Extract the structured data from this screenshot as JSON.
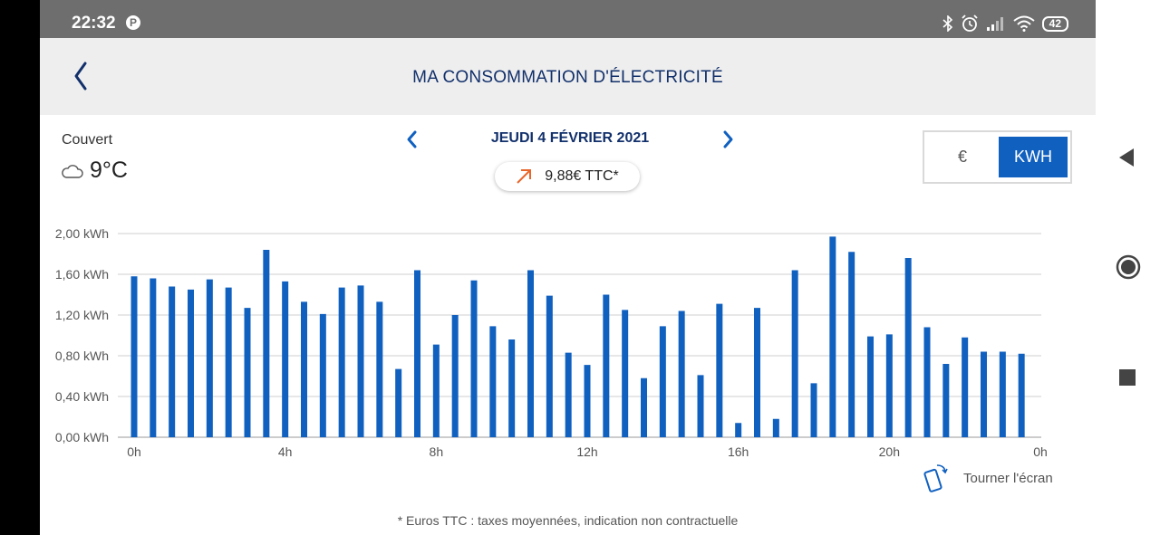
{
  "status_bar": {
    "time": "22:32",
    "battery": "42",
    "icons": [
      "pinterest-icon",
      "bluetooth-icon",
      "alarm-icon",
      "signal-icon",
      "wifi-icon",
      "battery-icon"
    ]
  },
  "app_bar": {
    "title": "MA CONSOMMATION D'ÉLECTRICITÉ",
    "back_icon": "chevron-left-icon"
  },
  "weather": {
    "label": "Couvert",
    "temperature": "9°C",
    "icon": "cloud-icon"
  },
  "date_nav": {
    "label": "JEUDI 4 FÉVRIER 2021",
    "prev_icon": "chevron-left-icon",
    "next_icon": "chevron-right-icon"
  },
  "cost": {
    "value": "9,88€ TTC*",
    "trend_icon": "arrow-up-right-icon",
    "trend_color": "#e8662a"
  },
  "unit_toggle": {
    "options": [
      "€",
      "KWH"
    ],
    "selected": "KWH"
  },
  "colors": {
    "accent": "#1060c0",
    "title": "#12306b"
  },
  "chart_data": {
    "type": "bar",
    "y_tick_labels": [
      "0,00 kWh",
      "0,40 kWh",
      "0,80 kWh",
      "1,20 kWh",
      "1,60 kWh",
      "2,00 kWh"
    ],
    "x_tick_labels": [
      "0h",
      "4h",
      "8h",
      "12h",
      "16h",
      "20h",
      "0h"
    ],
    "ylim": [
      0,
      2.0
    ],
    "interval_hours": 0.5,
    "values": [
      1.58,
      1.56,
      1.48,
      1.45,
      1.55,
      1.47,
      1.27,
      1.84,
      1.53,
      1.33,
      1.21,
      1.47,
      1.49,
      1.33,
      0.67,
      1.64,
      0.91,
      1.2,
      1.54,
      1.09,
      0.96,
      1.64,
      1.39,
      0.83,
      0.71,
      1.4,
      1.25,
      0.58,
      1.09,
      1.24,
      0.61,
      1.31,
      0.14,
      1.27,
      0.18,
      1.64,
      0.53,
      1.97,
      1.82,
      0.99,
      1.01,
      1.76,
      1.08,
      0.72,
      0.98,
      0.84,
      0.84,
      0.82
    ],
    "grid": true,
    "legend": "none"
  },
  "rotate": {
    "label": "Tourner l'écran",
    "icon": "rotate-phone-icon"
  },
  "footnote": "* Euros TTC : taxes moyennées, indication non contractuelle",
  "nav_bar": {
    "icons": [
      "back-triangle-icon",
      "home-circle-icon",
      "recents-square-icon"
    ]
  }
}
